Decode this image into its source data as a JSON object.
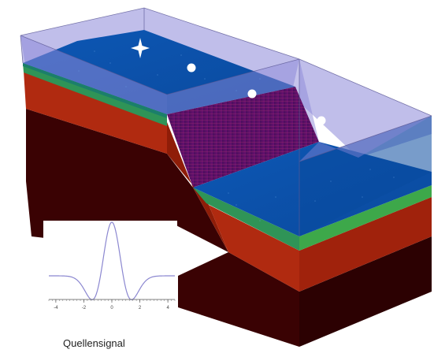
{
  "caption": "Quellensignal",
  "wavelet": {
    "x_ticks": [
      "-4",
      "-2",
      "0",
      "2",
      "4"
    ],
    "x_range": [
      -4.5,
      4.5
    ],
    "color": "#8b87d0"
  },
  "colors": {
    "water": "#0b57b8",
    "water_top": "#0f4fa3",
    "water_dark": "#0a3f86",
    "sediment_top": "#1b7f6a",
    "sediment_mid": "#3da84a",
    "red_layer": "#b02a10",
    "red_layer_side": "#8f1d08",
    "dark_layer": "#3a0203",
    "dark_layer_side": "#2c0102",
    "slope": "#4c1060",
    "glass": "#8c88d8",
    "glass_edge": "#5d5a97"
  },
  "markers": {
    "source": "star-icon",
    "receivers": [
      "receiver-dot",
      "receiver-dot",
      "receiver-dot"
    ]
  }
}
